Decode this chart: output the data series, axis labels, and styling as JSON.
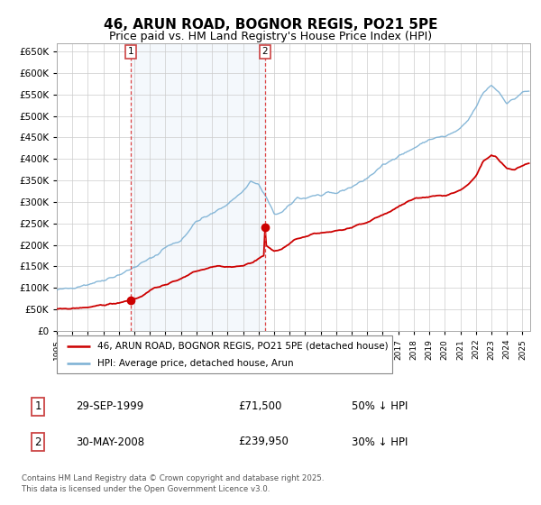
{
  "title": "46, ARUN ROAD, BOGNOR REGIS, PO21 5PE",
  "subtitle": "Price paid vs. HM Land Registry's House Price Index (HPI)",
  "legend_line1": "46, ARUN ROAD, BOGNOR REGIS, PO21 5PE (detached house)",
  "legend_line2": "HPI: Average price, detached house, Arun",
  "transaction1_date": "29-SEP-1999",
  "transaction1_price": "£71,500",
  "transaction1_pct": "50% ↓ HPI",
  "transaction2_date": "30-MAY-2008",
  "transaction2_price": "£239,950",
  "transaction2_pct": "30% ↓ HPI",
  "footer": "Contains HM Land Registry data © Crown copyright and database right 2025.\nThis data is licensed under the Open Government Licence v3.0.",
  "hpi_color": "#7ab0d4",
  "price_color": "#cc0000",
  "shade_color": "#ddeeff",
  "vline_color": "#dd4444",
  "grid_color": "#cccccc",
  "ylim": [
    0,
    670000
  ],
  "yticks": [
    0,
    50000,
    100000,
    150000,
    200000,
    250000,
    300000,
    350000,
    400000,
    450000,
    500000,
    550000,
    600000,
    650000
  ],
  "transaction1_year": 1999.75,
  "transaction2_year": 2008.42,
  "transaction1_price_val": 71500,
  "transaction2_price_val": 239950
}
